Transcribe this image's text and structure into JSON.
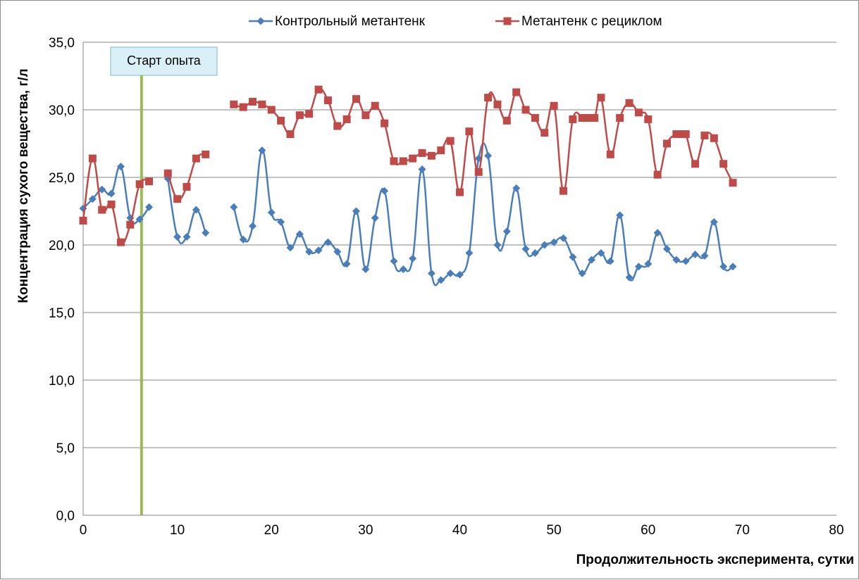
{
  "chart_data": {
    "type": "line",
    "title": "",
    "xlabel": "Продолжительность эксперимента, сутки",
    "ylabel": "Концентрация сухого вещества, г/л",
    "xlim": [
      0,
      80
    ],
    "ylim": [
      0,
      35
    ],
    "x_ticks": [
      "0",
      "10",
      "20",
      "30",
      "40",
      "50",
      "60",
      "70",
      "80"
    ],
    "y_ticks": [
      "0,0",
      "5,0",
      "10,0",
      "15,0",
      "20,0",
      "25,0",
      "30,0",
      "35,0"
    ],
    "grid": "horizontal",
    "legend_position": "top",
    "annotation": {
      "label": "Старт опыта",
      "x": 6.2
    },
    "series": [
      {
        "name": "Контрольный метантенк",
        "color": "#4a7ebb",
        "marker": "diamond",
        "segments": [
          [
            [
              0,
              22.7
            ],
            [
              1,
              23.4
            ],
            [
              2,
              24.1
            ],
            [
              3,
              23.8
            ],
            [
              4,
              25.8
            ],
            [
              5,
              22.0
            ],
            [
              6,
              21.9
            ],
            [
              7,
              22.8
            ]
          ],
          [
            [
              9,
              24.9
            ],
            [
              10,
              20.6
            ],
            [
              11,
              20.6
            ],
            [
              12,
              22.6
            ],
            [
              13,
              20.9
            ]
          ],
          [
            [
              16,
              22.8
            ],
            [
              17,
              20.4
            ],
            [
              18,
              21.4
            ],
            [
              19,
              27.0
            ],
            [
              20,
              22.4
            ],
            [
              21,
              21.7
            ],
            [
              22,
              19.8
            ],
            [
              23,
              20.8
            ],
            [
              24,
              19.5
            ],
            [
              25,
              19.6
            ],
            [
              26,
              20.2
            ],
            [
              27,
              19.5
            ],
            [
              28,
              18.6
            ],
            [
              29,
              22.5
            ],
            [
              30,
              18.2
            ],
            [
              31,
              22.0
            ],
            [
              32,
              24.0
            ],
            [
              33,
              18.8
            ],
            [
              34,
              18.2
            ],
            [
              35,
              19.0
            ],
            [
              36,
              25.6
            ],
            [
              37,
              17.9
            ],
            [
              38,
              17.4
            ],
            [
              39,
              17.9
            ],
            [
              40,
              17.8
            ],
            [
              41,
              19.4
            ],
            [
              42,
              26.4
            ],
            [
              43,
              26.6
            ],
            [
              44,
              20.0
            ],
            [
              45,
              21.0
            ],
            [
              46,
              24.2
            ],
            [
              47,
              19.7
            ],
            [
              48,
              19.4
            ],
            [
              49,
              20.0
            ],
            [
              50,
              20.2
            ],
            [
              51,
              20.5
            ],
            [
              52,
              19.1
            ],
            [
              53,
              17.9
            ],
            [
              54,
              18.9
            ],
            [
              55,
              19.4
            ],
            [
              56,
              18.8
            ],
            [
              57,
              22.2
            ],
            [
              58,
              17.6
            ],
            [
              59,
              18.4
            ],
            [
              60,
              18.6
            ],
            [
              61,
              20.9
            ],
            [
              62,
              19.7
            ],
            [
              63,
              18.9
            ],
            [
              64,
              18.8
            ],
            [
              65,
              19.3
            ],
            [
              66,
              19.2
            ],
            [
              67,
              21.7
            ],
            [
              68,
              18.4
            ],
            [
              69,
              18.4
            ]
          ]
        ]
      },
      {
        "name": "Метантенк с рециклом",
        "color": "#be4b48",
        "marker": "square",
        "segments": [
          [
            [
              0,
              21.8
            ],
            [
              1,
              26.4
            ],
            [
              2,
              22.6
            ],
            [
              3,
              23.0
            ],
            [
              4,
              20.2
            ],
            [
              5,
              21.5
            ],
            [
              6,
              24.5
            ],
            [
              7,
              24.7
            ]
          ],
          [
            [
              9,
              25.3
            ],
            [
              10,
              23.4
            ],
            [
              11,
              24.3
            ],
            [
              12,
              26.4
            ],
            [
              13,
              26.7
            ]
          ],
          [
            [
              16,
              30.4
            ],
            [
              17,
              30.2
            ],
            [
              18,
              30.6
            ],
            [
              19,
              30.4
            ],
            [
              20,
              30.0
            ],
            [
              21,
              29.2
            ],
            [
              22,
              28.2
            ],
            [
              23,
              29.6
            ],
            [
              24,
              29.7
            ],
            [
              25,
              31.5
            ],
            [
              26,
              30.7
            ],
            [
              27,
              28.8
            ],
            [
              28,
              29.3
            ],
            [
              29,
              30.8
            ],
            [
              30,
              29.6
            ],
            [
              31,
              30.3
            ],
            [
              32,
              29.0
            ],
            [
              33,
              26.2
            ],
            [
              34,
              26.2
            ],
            [
              35,
              26.4
            ],
            [
              36,
              26.8
            ],
            [
              37,
              26.6
            ],
            [
              38,
              27.0
            ],
            [
              39,
              27.7
            ],
            [
              40,
              23.9
            ],
            [
              41,
              28.4
            ],
            [
              42,
              25.4
            ],
            [
              43,
              30.9
            ],
            [
              44,
              30.4
            ],
            [
              45,
              29.2
            ],
            [
              46,
              31.3
            ],
            [
              47,
              30.0
            ],
            [
              48,
              29.4
            ],
            [
              49,
              28.3
            ],
            [
              50,
              30.3
            ],
            [
              51,
              24.0
            ],
            [
              52,
              29.3
            ],
            [
              53,
              29.4
            ],
            [
              53.6,
              29.4
            ],
            [
              54.3,
              29.4
            ],
            [
              55,
              30.9
            ],
            [
              56,
              26.7
            ],
            [
              57,
              29.4
            ],
            [
              58,
              30.5
            ],
            [
              59,
              29.8
            ],
            [
              60,
              29.3
            ],
            [
              61,
              25.2
            ],
            [
              62,
              27.5
            ],
            [
              63,
              28.2
            ],
            [
              63.5,
              28.2
            ],
            [
              64,
              28.2
            ],
            [
              65,
              26.0
            ],
            [
              66,
              28.1
            ],
            [
              67,
              27.9
            ],
            [
              68,
              26.0
            ],
            [
              69,
              24.6
            ]
          ]
        ]
      }
    ]
  }
}
